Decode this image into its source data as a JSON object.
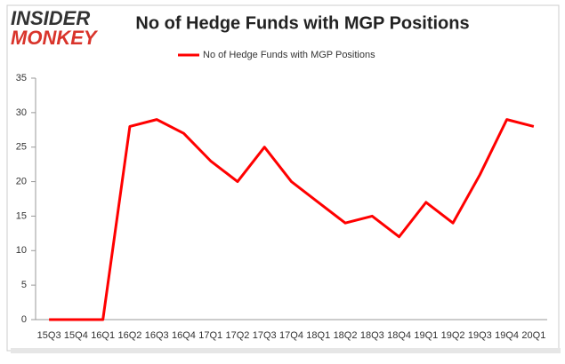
{
  "logo": {
    "line1": "INSIDER",
    "line2": "MONKEY"
  },
  "chart_data": {
    "type": "line",
    "title": "No of Hedge Funds with MGP Positions",
    "categories": [
      "15Q3",
      "15Q4",
      "16Q1",
      "16Q2",
      "16Q3",
      "16Q4",
      "17Q1",
      "17Q2",
      "17Q3",
      "17Q4",
      "18Q1",
      "18Q2",
      "18Q3",
      "18Q4",
      "19Q1",
      "19Q2",
      "19Q3",
      "19Q4",
      "20Q1"
    ],
    "series": [
      {
        "name": "No of Hedge Funds with MGP Positions",
        "color": "#ff0000",
        "values": [
          0,
          0,
          0,
          28,
          29,
          27,
          23,
          20,
          25,
          20,
          17,
          14,
          15,
          12,
          17,
          14,
          21,
          29,
          28
        ]
      }
    ],
    "ylim": [
      0,
      35
    ],
    "yticks": [
      0,
      5,
      10,
      15,
      20,
      25,
      30,
      35
    ],
    "grid": false,
    "legend": "top"
  }
}
